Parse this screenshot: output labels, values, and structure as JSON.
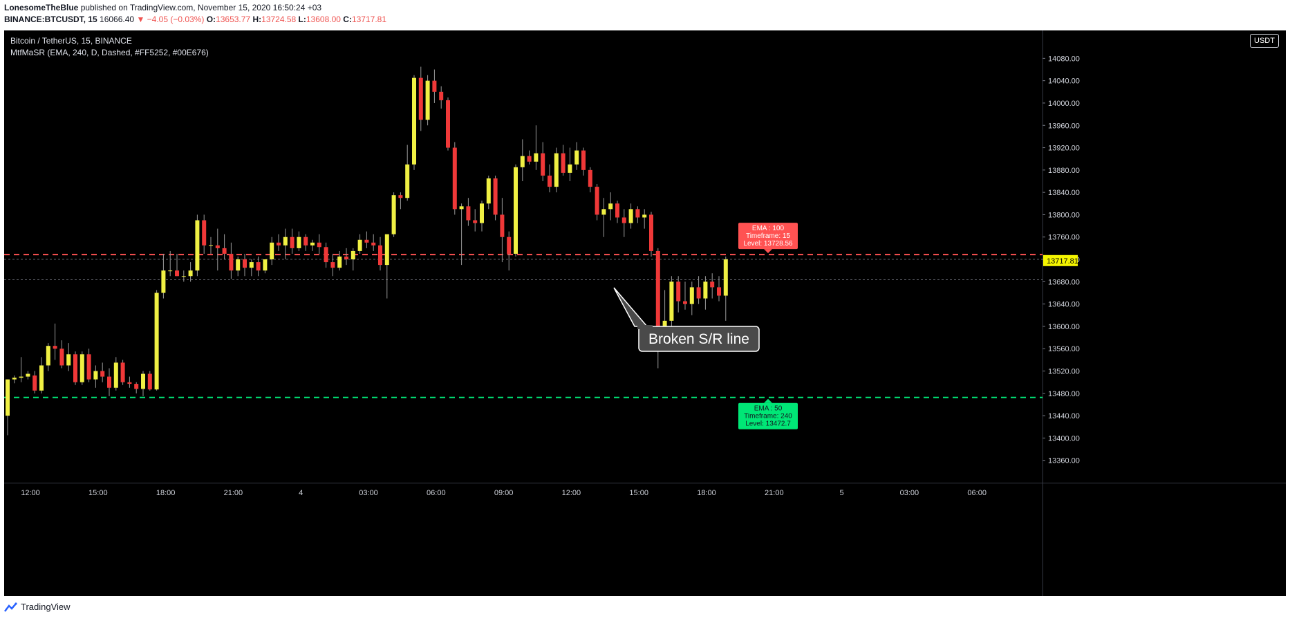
{
  "header": {
    "author": "LonesomeTheBlue",
    "published_text": "published on TradingView.com, November 15, 2020 16:50:24 +03",
    "symbol": "BINANCE:BTCUSDT, 15",
    "last": "16066.40",
    "change": "▼ −4.05 (−0.03%)",
    "o_label": "O:",
    "o_value": "13653.77",
    "h_label": "H:",
    "h_value": "13724.58",
    "l_label": "L:",
    "l_value": "13608.00",
    "c_label": "C:",
    "c_value": "13717.81"
  },
  "legend": {
    "title": "Bitcoin / TetherUS, 15, BINANCE",
    "indicator": "MtfMaSR (EMA, 240, D, Dashed, #FF5252, #00E676)"
  },
  "currency_button": "USDT",
  "footer": {
    "brand": "TradingView",
    "logo_icon": "tradingview-logo-icon"
  },
  "colors": {
    "up": "#f0f043",
    "down": "#ef3838",
    "ema_red": "#ff5252",
    "ema_green": "#00e676",
    "last_price_bg": "#f5f500"
  },
  "chart_data": {
    "type": "candlestick",
    "title": "Bitcoin / TetherUS, 15, BINANCE",
    "ylim": [
      13320,
      14130
    ],
    "y_ticks": [
      13360,
      13400,
      13440,
      13480,
      13520,
      13560,
      13600,
      13640,
      13680,
      13720,
      13760,
      13800,
      13840,
      13880,
      13920,
      13960,
      14000,
      14040,
      14080
    ],
    "y_tick_labels": [
      "13360.00",
      "13400.00",
      "13440.00",
      "13480.00",
      "13520.00",
      "13560.00",
      "13600.00",
      "13640.00",
      "13680.00",
      "13720.00",
      "13760.00",
      "13800.00",
      "13840.00",
      "13880.00",
      "13920.00",
      "13960.00",
      "14000.00",
      "14040.00",
      "14080.00"
    ],
    "x_tick_labels": [
      "12:00",
      "15:00",
      "18:00",
      "21:00",
      "4",
      "03:00",
      "06:00",
      "09:00",
      "12:00",
      "15:00",
      "18:00",
      "21:00",
      "5",
      "03:00",
      "06:00"
    ],
    "last_price": "13717.81",
    "candles": [
      [
        13440,
        13505,
        13405,
        13505
      ],
      [
        13505,
        13512,
        13498,
        13508
      ],
      [
        13508,
        13545,
        13500,
        13510
      ],
      [
        13510,
        13520,
        13505,
        13515
      ],
      [
        13512,
        13520,
        13480,
        13485
      ],
      [
        13485,
        13545,
        13480,
        13530
      ],
      [
        13530,
        13570,
        13520,
        13565
      ],
      [
        13565,
        13605,
        13540,
        13560
      ],
      [
        13560,
        13575,
        13525,
        13530
      ],
      [
        13530,
        13570,
        13520,
        13550
      ],
      [
        13550,
        13555,
        13495,
        13500
      ],
      [
        13500,
        13555,
        13495,
        13550
      ],
      [
        13550,
        13560,
        13500,
        13505
      ],
      [
        13505,
        13530,
        13490,
        13520
      ],
      [
        13520,
        13535,
        13500,
        13510
      ],
      [
        13510,
        13525,
        13475,
        13490
      ],
      [
        13490,
        13545,
        13485,
        13535
      ],
      [
        13535,
        13540,
        13495,
        13500
      ],
      [
        13500,
        13510,
        13490,
        13497
      ],
      [
        13497,
        13500,
        13480,
        13488
      ],
      [
        13488,
        13520,
        13475,
        13515
      ],
      [
        13515,
        13520,
        13485,
        13487
      ],
      [
        13487,
        13665,
        13485,
        13660
      ],
      [
        13660,
        13730,
        13650,
        13700
      ],
      [
        13700,
        13735,
        13690,
        13700
      ],
      [
        13700,
        13730,
        13690,
        13690
      ],
      [
        13690,
        13700,
        13680,
        13690
      ],
      [
        13690,
        13715,
        13680,
        13700
      ],
      [
        13700,
        13800,
        13690,
        13790
      ],
      [
        13790,
        13800,
        13730,
        13745
      ],
      [
        13745,
        13760,
        13730,
        13745
      ],
      [
        13745,
        13775,
        13700,
        13740
      ],
      [
        13740,
        13765,
        13720,
        13730
      ],
      [
        13730,
        13750,
        13685,
        13700
      ],
      [
        13700,
        13725,
        13690,
        13720
      ],
      [
        13720,
        13730,
        13690,
        13705
      ],
      [
        13705,
        13720,
        13690,
        13715
      ],
      [
        13715,
        13725,
        13690,
        13700
      ],
      [
        13700,
        13720,
        13695,
        13720
      ],
      [
        13720,
        13760,
        13710,
        13750
      ],
      [
        13750,
        13765,
        13735,
        13745
      ],
      [
        13745,
        13775,
        13720,
        13760
      ],
      [
        13760,
        13775,
        13730,
        13740
      ],
      [
        13740,
        13770,
        13735,
        13760
      ],
      [
        13760,
        13765,
        13735,
        13745
      ],
      [
        13745,
        13755,
        13735,
        13750
      ],
      [
        13750,
        13765,
        13730,
        13742
      ],
      [
        13742,
        13750,
        13705,
        13715
      ],
      [
        13715,
        13730,
        13690,
        13705
      ],
      [
        13705,
        13735,
        13700,
        13725
      ],
      [
        13725,
        13740,
        13710,
        13720
      ],
      [
        13720,
        13740,
        13700,
        13735
      ],
      [
        13735,
        13765,
        13730,
        13755
      ],
      [
        13755,
        13770,
        13740,
        13750
      ],
      [
        13750,
        13765,
        13735,
        13745
      ],
      [
        13745,
        13760,
        13700,
        13710
      ],
      [
        13710,
        13760,
        13650,
        13765
      ],
      [
        13765,
        13840,
        13760,
        13835
      ],
      [
        13835,
        13840,
        13810,
        13830
      ],
      [
        13830,
        13925,
        13825,
        13890
      ],
      [
        13890,
        14050,
        13880,
        14045
      ],
      [
        14045,
        14065,
        13950,
        13970
      ],
      [
        13970,
        14050,
        13960,
        14040
      ],
      [
        14040,
        14060,
        14000,
        14020
      ],
      [
        14020,
        14030,
        13990,
        14005
      ],
      [
        14005,
        14010,
        13915,
        13920
      ],
      [
        13920,
        13930,
        13800,
        13810
      ],
      [
        13810,
        13820,
        13710,
        13815
      ],
      [
        13815,
        13830,
        13780,
        13790
      ],
      [
        13790,
        13810,
        13770,
        13785
      ],
      [
        13785,
        13825,
        13770,
        13820
      ],
      [
        13820,
        13870,
        13810,
        13865
      ],
      [
        13865,
        13870,
        13790,
        13800
      ],
      [
        13800,
        13830,
        13715,
        13760
      ],
      [
        13760,
        13770,
        13700,
        13730
      ],
      [
        13730,
        13890,
        13725,
        13885
      ],
      [
        13885,
        13935,
        13860,
        13905
      ],
      [
        13905,
        13915,
        13890,
        13895
      ],
      [
        13895,
        13960,
        13880,
        13910
      ],
      [
        13910,
        13930,
        13860,
        13870
      ],
      [
        13870,
        13890,
        13840,
        13850
      ],
      [
        13850,
        13920,
        13840,
        13910
      ],
      [
        13910,
        13925,
        13870,
        13875
      ],
      [
        13875,
        13920,
        13860,
        13890
      ],
      [
        13890,
        13930,
        13880,
        13915
      ],
      [
        13915,
        13920,
        13870,
        13880
      ],
      [
        13880,
        13885,
        13840,
        13850
      ],
      [
        13850,
        13855,
        13790,
        13800
      ],
      [
        13800,
        13830,
        13760,
        13810
      ],
      [
        13810,
        13840,
        13790,
        13820
      ],
      [
        13820,
        13825,
        13785,
        13795
      ],
      [
        13795,
        13810,
        13760,
        13785
      ],
      [
        13785,
        13820,
        13775,
        13810
      ],
      [
        13810,
        13815,
        13785,
        13795
      ],
      [
        13795,
        13810,
        13775,
        13800
      ],
      [
        13800,
        13805,
        13725,
        13735
      ],
      [
        13735,
        13740,
        13525,
        13600
      ],
      [
        13600,
        13665,
        13570,
        13610
      ],
      [
        13610,
        13690,
        13600,
        13680
      ],
      [
        13680,
        13690,
        13625,
        13645
      ],
      [
        13645,
        13680,
        13630,
        13640
      ],
      [
        13640,
        13680,
        13620,
        13670
      ],
      [
        13670,
        13690,
        13640,
        13650
      ],
      [
        13650,
        13690,
        13630,
        13680
      ],
      [
        13680,
        13695,
        13650,
        13670
      ],
      [
        13670,
        13690,
        13645,
        13655
      ],
      [
        13655,
        13725,
        13610,
        13720
      ]
    ],
    "ema_levels": [
      {
        "label": "EMA : 100",
        "timeframe": "Timeframe: 15",
        "level_text": "Level: 13728.56",
        "level": 13728.56
      },
      {
        "label": "EMA : 50",
        "timeframe": "Timeframe: 240",
        "level_text": "Level: 13472.7",
        "level": 13472.7
      }
    ],
    "reference_levels": [
      13683.5,
      13720
    ],
    "annotation": "Broken S/R line"
  }
}
